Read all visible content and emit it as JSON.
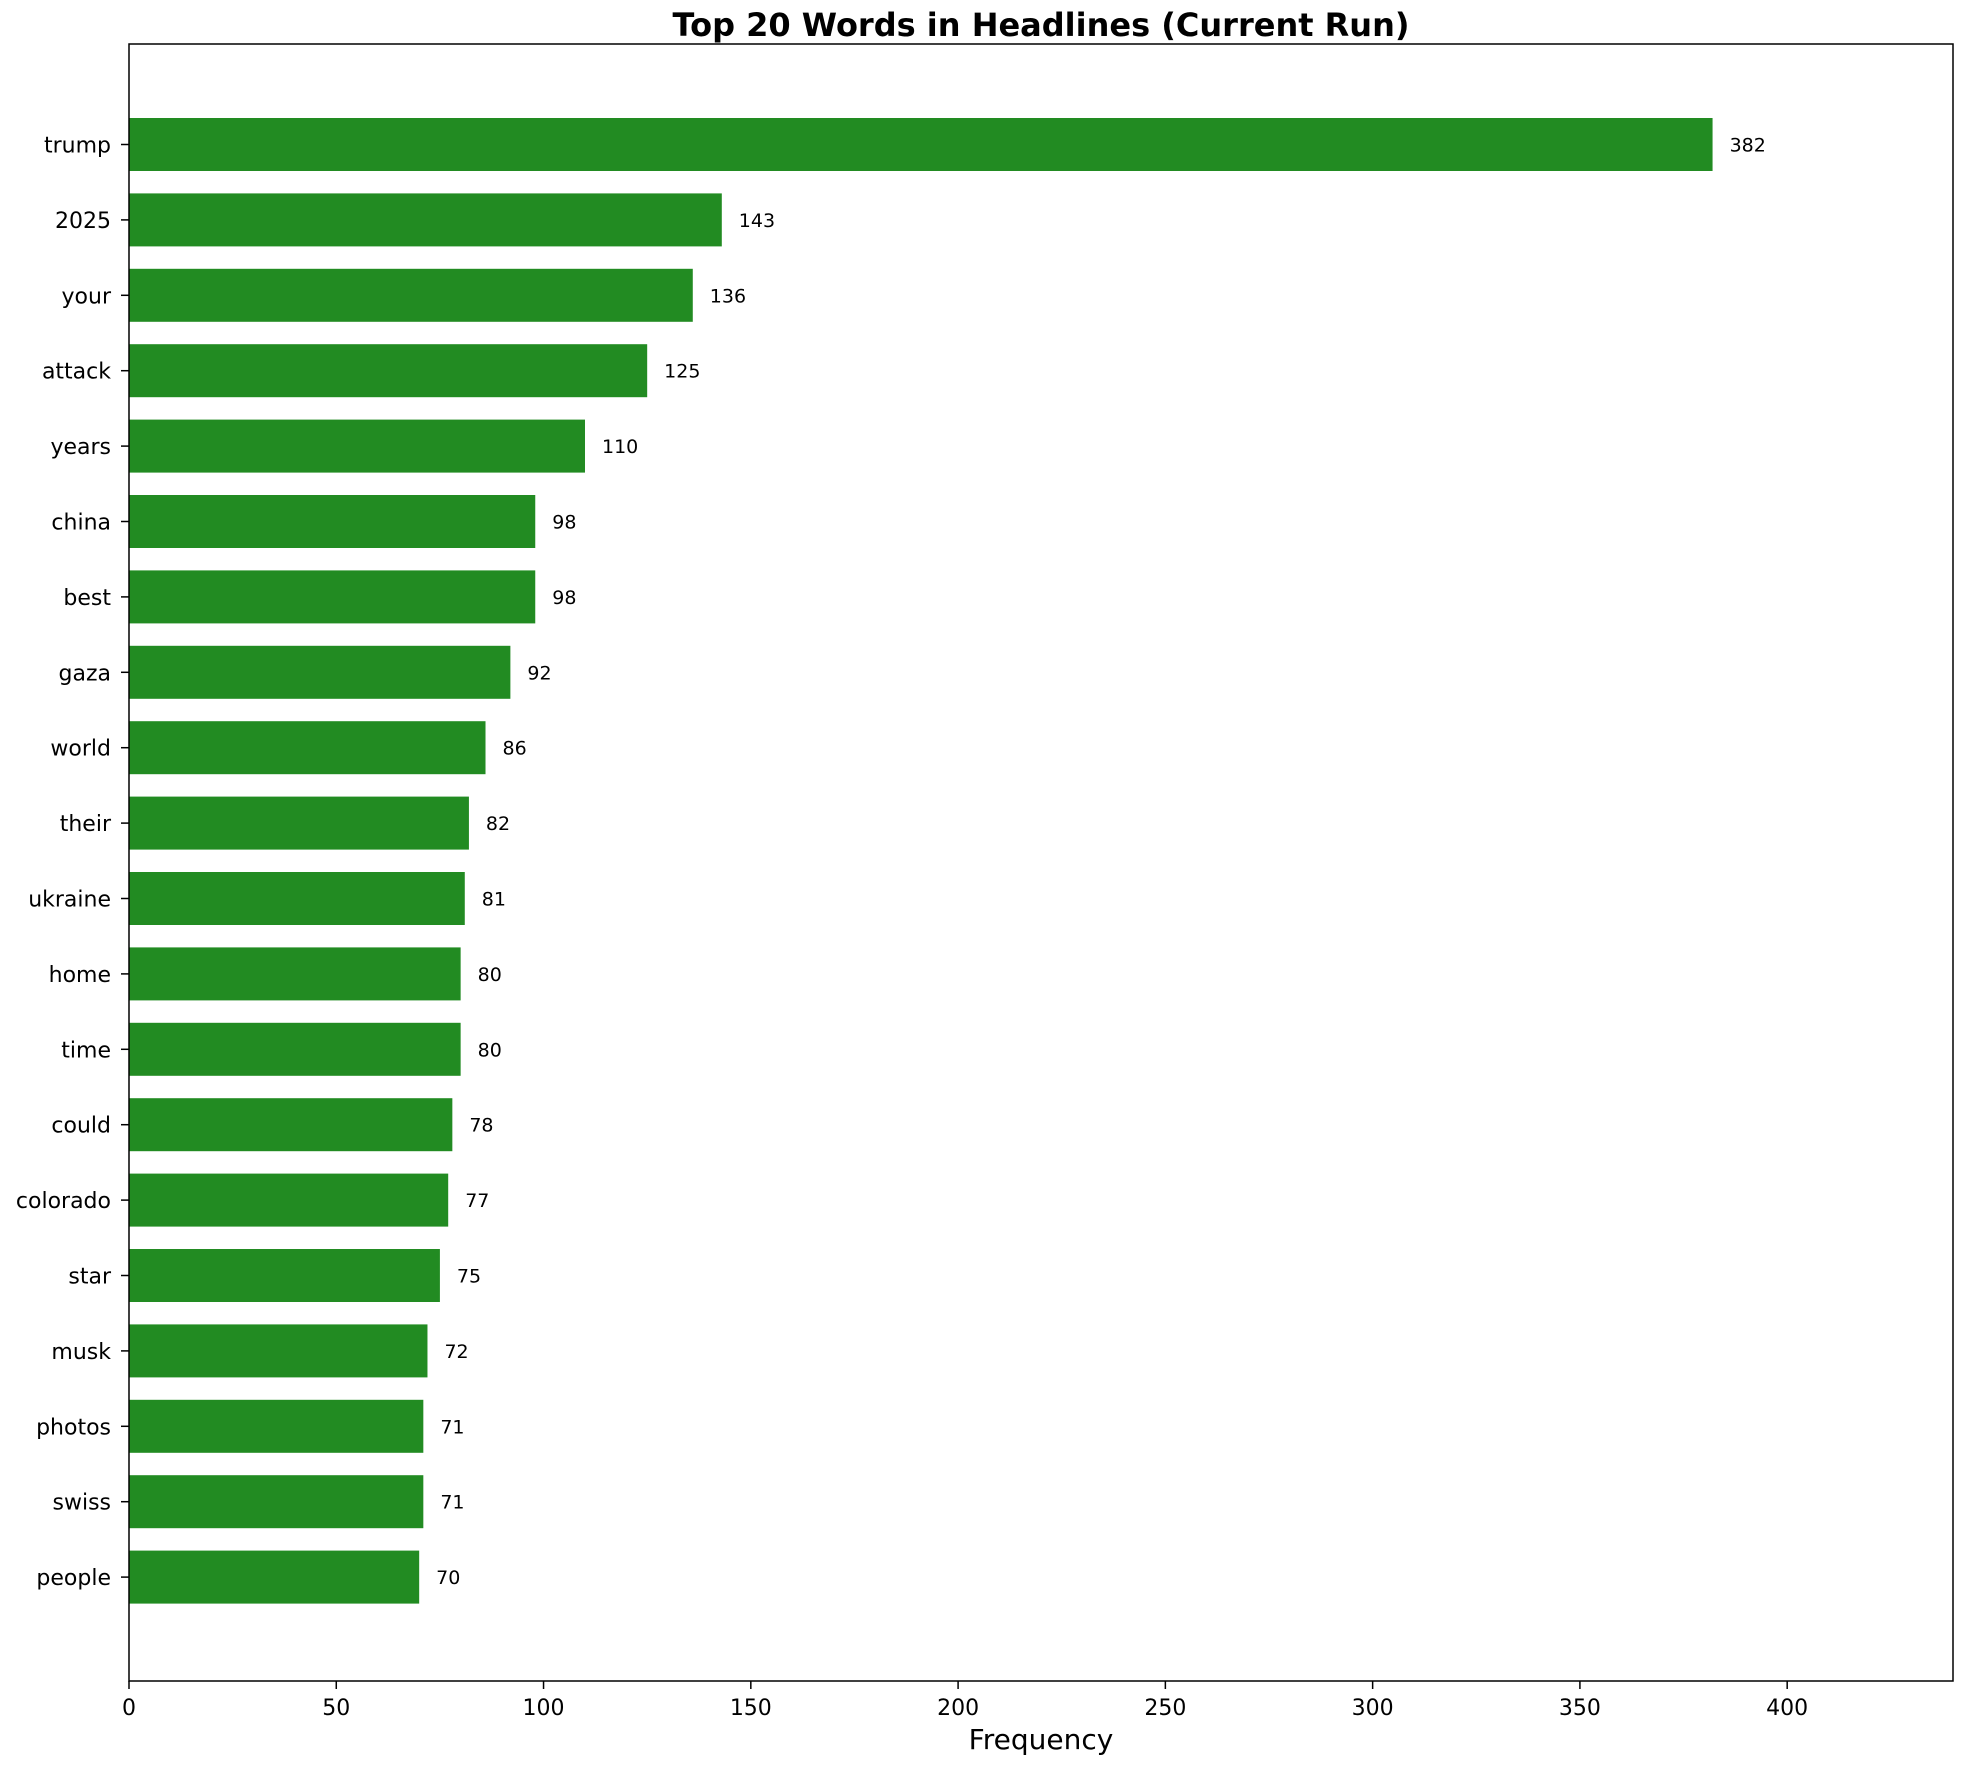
{
  "chart_data": {
    "type": "bar",
    "orientation": "horizontal",
    "title": "Top 20 Words in Headlines (Current Run)",
    "xlabel": "Frequency",
    "ylabel": "",
    "xlim": [
      0,
      440
    ],
    "x_ticks": [
      0,
      50,
      100,
      150,
      200,
      250,
      300,
      350,
      400
    ],
    "grid": false,
    "bar_color": "#228B22",
    "categories": [
      "trump",
      "2025",
      "your",
      "attack",
      "years",
      "china",
      "best",
      "gaza",
      "world",
      "their",
      "ukraine",
      "home",
      "time",
      "could",
      "colorado",
      "star",
      "musk",
      "photos",
      "swiss",
      "people"
    ],
    "values": [
      382,
      143,
      136,
      125,
      110,
      98,
      98,
      92,
      86,
      82,
      81,
      80,
      80,
      78,
      77,
      75,
      72,
      71,
      71,
      70
    ]
  }
}
